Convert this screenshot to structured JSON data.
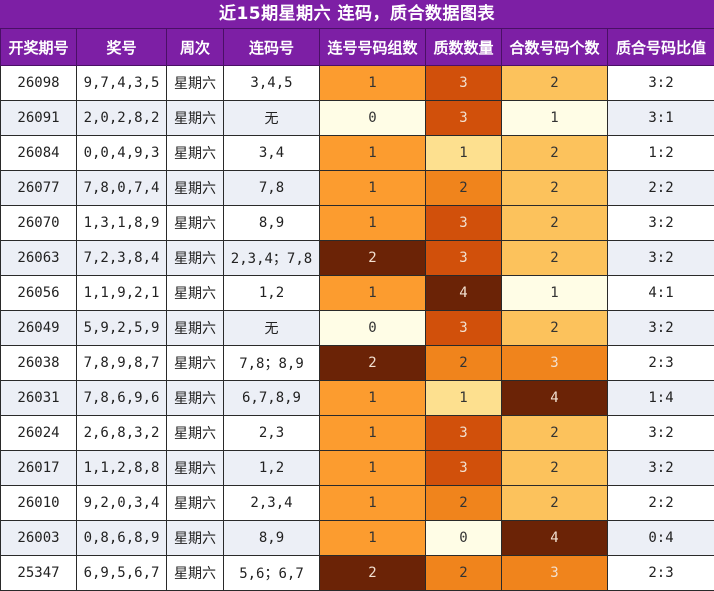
{
  "title": "近15期星期六 连码，质合数据图表",
  "headers": [
    "开奖期号",
    "奖号",
    "周次",
    "连码号",
    "连号号码组数",
    "质数数量",
    "合数号码个数",
    "质合号码比值"
  ],
  "colors": {
    "header_bg": "#7d1fa5",
    "level_0": "#fffde6",
    "level_1_light": "#fde08f",
    "level_1": "#fc9c2f",
    "level_2": "#fcc25c",
    "level_2_dark": "#f0841c",
    "level_3": "#d1500b",
    "level_3_alt": "#f0841c",
    "level_4": "#6b2306"
  },
  "rows": [
    {
      "issue": "26098",
      "numbers": "9,7,4,3,5",
      "weekday": "星期六",
      "consecutive": "3,4,5",
      "groups": "1",
      "primes": "3",
      "composites": "2",
      "ratio": "3:2"
    },
    {
      "issue": "26091",
      "numbers": "2,0,2,8,2",
      "weekday": "星期六",
      "consecutive": "无",
      "groups": "0",
      "primes": "3",
      "composites": "1",
      "ratio": "3:1"
    },
    {
      "issue": "26084",
      "numbers": "0,0,4,9,3",
      "weekday": "星期六",
      "consecutive": "3,4",
      "groups": "1",
      "primes": "1",
      "composites": "2",
      "ratio": "1:2"
    },
    {
      "issue": "26077",
      "numbers": "7,8,0,7,4",
      "weekday": "星期六",
      "consecutive": "7,8",
      "groups": "1",
      "primes": "2",
      "composites": "2",
      "ratio": "2:2"
    },
    {
      "issue": "26070",
      "numbers": "1,3,1,8,9",
      "weekday": "星期六",
      "consecutive": "8,9",
      "groups": "1",
      "primes": "3",
      "composites": "2",
      "ratio": "3:2"
    },
    {
      "issue": "26063",
      "numbers": "7,2,3,8,4",
      "weekday": "星期六",
      "consecutive": "2,3,4；7,8",
      "groups": "2",
      "primes": "3",
      "composites": "2",
      "ratio": "3:2"
    },
    {
      "issue": "26056",
      "numbers": "1,1,9,2,1",
      "weekday": "星期六",
      "consecutive": "1,2",
      "groups": "1",
      "primes": "4",
      "composites": "1",
      "ratio": "4:1"
    },
    {
      "issue": "26049",
      "numbers": "5,9,2,5,9",
      "weekday": "星期六",
      "consecutive": "无",
      "groups": "0",
      "primes": "3",
      "composites": "2",
      "ratio": "3:2"
    },
    {
      "issue": "26038",
      "numbers": "7,8,9,8,7",
      "weekday": "星期六",
      "consecutive": "7,8；8,9",
      "groups": "2",
      "primes": "2",
      "composites": "3",
      "ratio": "2:3"
    },
    {
      "issue": "26031",
      "numbers": "7,8,6,9,6",
      "weekday": "星期六",
      "consecutive": "6,7,8,9",
      "groups": "1",
      "primes": "1",
      "composites": "4",
      "ratio": "1:4"
    },
    {
      "issue": "26024",
      "numbers": "2,6,8,3,2",
      "weekday": "星期六",
      "consecutive": "2,3",
      "groups": "1",
      "primes": "3",
      "composites": "2",
      "ratio": "3:2"
    },
    {
      "issue": "26017",
      "numbers": "1,1,2,8,8",
      "weekday": "星期六",
      "consecutive": "1,2",
      "groups": "1",
      "primes": "3",
      "composites": "2",
      "ratio": "3:2"
    },
    {
      "issue": "26010",
      "numbers": "9,2,0,3,4",
      "weekday": "星期六",
      "consecutive": "2,3,4",
      "groups": "1",
      "primes": "2",
      "composites": "2",
      "ratio": "2:2"
    },
    {
      "issue": "26003",
      "numbers": "0,8,6,8,9",
      "weekday": "星期六",
      "consecutive": "8,9",
      "groups": "1",
      "primes": "0",
      "composites": "4",
      "ratio": "0:4"
    },
    {
      "issue": "25347",
      "numbers": "6,9,5,6,7",
      "weekday": "星期六",
      "consecutive": "5,6；6,7",
      "groups": "2",
      "primes": "2",
      "composites": "3",
      "ratio": "2:3"
    }
  ]
}
